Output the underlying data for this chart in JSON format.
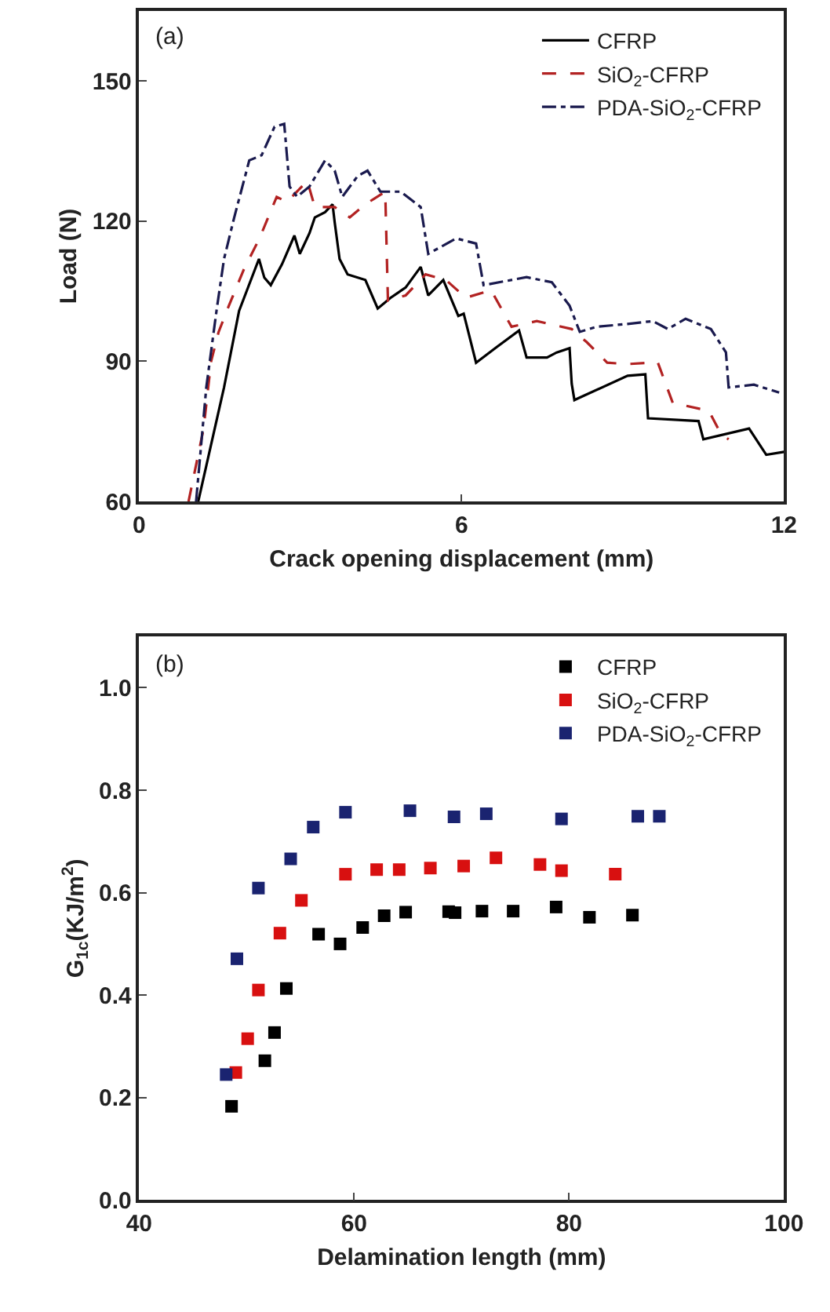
{
  "chart_data": [
    {
      "type": "line",
      "xlabel": "Crack opening displacement (mm)",
      "ylabel": "Load (N)",
      "annotations": [
        "(a)"
      ],
      "xlim": [
        0,
        12
      ],
      "xticks": [
        0,
        6,
        12
      ],
      "ylim": [
        60,
        165
      ],
      "yticks": [
        60,
        90,
        120,
        150
      ],
      "legend": "top right",
      "marker": "none",
      "series": [
        {
          "name": "CFRP",
          "color": "#000000",
          "line_style": "solid",
          "x": [
            1.1,
            1.58,
            1.86,
            2.23,
            2.33,
            2.45,
            2.66,
            2.89,
            2.99,
            3.17,
            3.27,
            3.46,
            3.6,
            3.64,
            3.73,
            3.88,
            4.21,
            4.44,
            4.68,
            4.96,
            5.24,
            5.38,
            5.66,
            5.94,
            6.04,
            6.27,
            6.65,
            7.07,
            7.21,
            7.59,
            7.77,
            8.01,
            8.05,
            8.1,
            9.09,
            9.42,
            9.47,
            10.41,
            10.5,
            11.35,
            11.67,
            12
          ],
          "values": [
            60,
            84.4,
            100.8,
            111.9,
            107.9,
            106.3,
            110.8,
            116.9,
            113,
            117.4,
            120.8,
            121.9,
            123.6,
            119.7,
            111.9,
            108.6,
            107.4,
            101.3,
            103.6,
            105.8,
            110.2,
            104.1,
            107.4,
            99.7,
            100.2,
            89.7,
            93,
            96.6,
            90.8,
            90.8,
            91.9,
            92.8,
            85.2,
            81.7,
            86.9,
            87.2,
            77.8,
            77.2,
            73.3,
            75.6,
            70,
            70.6
          ]
        },
        {
          "name": "SiO$_{2}$-CFRP",
          "color": "#b22222",
          "line_style": "dashed",
          "x": [
            0.92,
            1.2,
            1.34,
            1.48,
            1.67,
            1.95,
            2.24,
            2.56,
            2.75,
            3.13,
            3.27,
            3.64,
            3.92,
            4.21,
            4.58,
            4.63,
            4.96,
            5.33,
            5.71,
            6.08,
            6.55,
            6.93,
            7.4,
            8.05,
            8.33,
            8.71,
            9.09,
            9.65,
            9.93,
            10.6,
            10.83,
            10.97
          ],
          "values": [
            60,
            75.6,
            90,
            96.3,
            101.9,
            109.7,
            116.3,
            125.2,
            124.1,
            128.6,
            123,
            123,
            120.8,
            123.6,
            126.3,
            103,
            104.1,
            108.6,
            107.4,
            103.6,
            105.2,
            97.4,
            98.6,
            96.9,
            94.1,
            89.7,
            89.4,
            89.8,
            81.1,
            79.4,
            74.4,
            73.3
          ]
        },
        {
          "name": "PDA-SiO$_{2}$-CFRP",
          "color": "#1a1a4e",
          "line_style": "dashdot",
          "x": [
            1.06,
            1.25,
            1.44,
            1.58,
            1.77,
            2.05,
            2.28,
            2.52,
            2.7,
            2.8,
            2.94,
            3.17,
            3.46,
            3.64,
            3.78,
            4.07,
            4.25,
            4.49,
            4.87,
            5.24,
            5.38,
            5.9,
            6.27,
            6.41,
            7.21,
            7.68,
            8.01,
            8.2,
            8.52,
            9.09,
            9.56,
            9.84,
            10.17,
            10.64,
            10.92,
            10.97,
            11.44,
            11.91
          ],
          "values": [
            60,
            84.4,
            100.8,
            111.9,
            120.8,
            133,
            134.1,
            140.2,
            140.8,
            127.4,
            125.2,
            127.4,
            133,
            130.8,
            125.2,
            129.7,
            130.8,
            126.3,
            126.3,
            123,
            113,
            116.3,
            115.2,
            106.3,
            108,
            106.9,
            101.9,
            96.3,
            97.4,
            98,
            98.6,
            96.9,
            99.1,
            96.9,
            91.9,
            84.4,
            85,
            83.3
          ]
        }
      ]
    },
    {
      "type": "scatter",
      "xlabel": "Delamination length (mm)",
      "ylabel": "G$_{1c}$(KJ/m$^{2}$)",
      "annotations": [
        "(b)"
      ],
      "xlim": [
        40,
        100
      ],
      "xticks": [
        40,
        60,
        80,
        100
      ],
      "ylim": [
        0,
        1.1
      ],
      "yticks": [
        {
          "value": 0,
          "label": "0.0"
        },
        0.2,
        0.4,
        0.6,
        0.8,
        {
          "value": 1,
          "label": "1.0"
        }
      ],
      "legend": "top right",
      "marker": "square",
      "series": [
        {
          "name": "CFRP",
          "color": "#000000",
          "x": [
            48.6,
            51.7,
            52.6,
            53.7,
            56.7,
            58.7,
            60.8,
            62.8,
            64.8,
            68.8,
            69.4,
            71.9,
            74.8,
            78.8,
            81.9,
            85.9
          ],
          "values": [
            0.183,
            0.272,
            0.327,
            0.413,
            0.519,
            0.5,
            0.532,
            0.555,
            0.562,
            0.563,
            0.561,
            0.564,
            0.564,
            0.572,
            0.552,
            0.556
          ]
        },
        {
          "name": "SiO$_{2}$-CFRP",
          "color": "#d81010",
          "x": [
            49.0,
            50.1,
            51.1,
            53.1,
            55.1,
            59.2,
            62.1,
            64.2,
            67.1,
            70.2,
            73.2,
            77.3,
            79.3,
            84.3
          ],
          "values": [
            0.249,
            0.315,
            0.41,
            0.521,
            0.585,
            0.636,
            0.645,
            0.645,
            0.648,
            0.652,
            0.668,
            0.655,
            0.643,
            0.636
          ]
        },
        {
          "name": "PDA-SiO$_{2}$-CFRP",
          "color": "#1a2370",
          "x": [
            48.1,
            49.1,
            51.1,
            54.1,
            56.2,
            59.2,
            65.2,
            69.3,
            72.3,
            79.3,
            86.4,
            88.4
          ],
          "values": [
            0.245,
            0.471,
            0.609,
            0.666,
            0.728,
            0.757,
            0.76,
            0.748,
            0.754,
            0.744,
            0.749,
            0.749
          ]
        }
      ]
    }
  ]
}
